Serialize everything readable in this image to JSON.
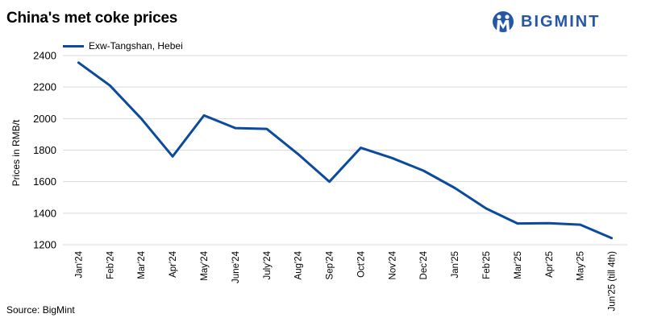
{
  "title": "China's met coke prices",
  "logo": {
    "text": "BIGMINT",
    "icon": "bigmint-logo-icon",
    "color": "#2557a7"
  },
  "source": "Source: BigMint",
  "chart_data": {
    "type": "line",
    "title": "China's met coke prices",
    "ylabel": "Prices in RMB/t",
    "xlabel": "",
    "ylim": [
      1200,
      2400
    ],
    "yticks": [
      1200,
      1400,
      1600,
      1800,
      2000,
      2200,
      2400
    ],
    "grid": "horizontal",
    "legend_position": "top-left",
    "categories": [
      "Jan'24",
      "Feb'24",
      "Mar'24",
      "Apr'24",
      "May'24",
      "June'24",
      "July'24",
      "Aug'24",
      "Sep'24",
      "Oct'24",
      "Nov'24",
      "Dec'24",
      "Jan'25",
      "Feb'25",
      "Mar'25",
      "Apr'25",
      "May'25",
      "Jun'25 (till 4th)"
    ],
    "series": [
      {
        "name": "Exw-Tangshan, Hebei",
        "color": "#0b4a9c",
        "values": [
          2355,
          2210,
          2000,
          1760,
          2020,
          1940,
          1935,
          1775,
          1600,
          1815,
          1750,
          1670,
          1560,
          1430,
          1335,
          1337,
          1327,
          1242
        ]
      }
    ]
  }
}
